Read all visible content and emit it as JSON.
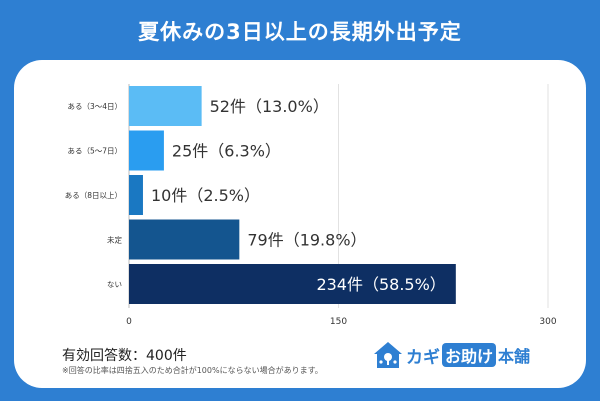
{
  "title": "夏休みの3日以上の長期外出予定",
  "chart_data": {
    "type": "bar",
    "orientation": "horizontal",
    "categories": [
      "ある（3〜4日）",
      "ある（5〜7日）",
      "ある（8日以上）",
      "未定",
      "ない"
    ],
    "values": [
      52,
      25,
      10,
      79,
      234
    ],
    "data_labels": [
      "52件（13.0%）",
      "25件（6.3%）",
      "10件（2.5%）",
      "79件（19.8%）",
      "234件（58.5%）"
    ],
    "colors": [
      "#5bbcf5",
      "#2a9df0",
      "#1a78c2",
      "#14558f",
      "#0e2f63"
    ],
    "xlim": [
      0,
      300
    ],
    "xticks": [
      "0",
      "150",
      "300"
    ],
    "grid": true
  },
  "footer": {
    "count": "有効回答数：400件",
    "note": "※回答の比率は四捨五入のため合計が100%にならない場合があります。"
  },
  "logo": {
    "part1": "カギ",
    "part2": "お助け",
    "part3": "本舗"
  }
}
